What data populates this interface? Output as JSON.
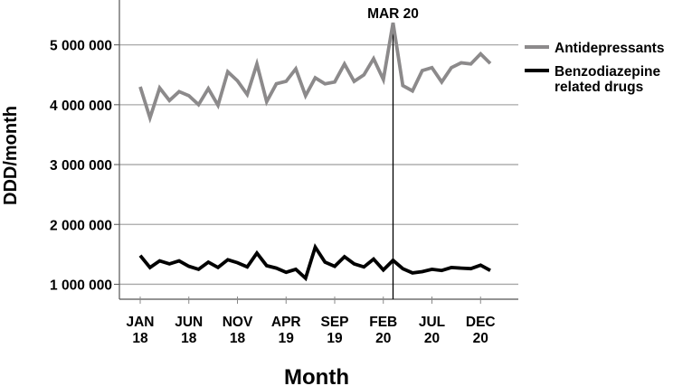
{
  "chart_data": {
    "type": "line",
    "xlabel": "Month",
    "ylabel": "DDD/month",
    "ylim": [
      750000,
      5750000
    ],
    "x_range": [
      -1,
      60
    ],
    "grid": "horizontal",
    "legend_position": "right",
    "y_ticks": [
      {
        "value": 1000000,
        "label": "1 000 000"
      },
      {
        "value": 2000000,
        "label": "2 000 000"
      },
      {
        "value": 3000000,
        "label": "3 000 000"
      },
      {
        "value": 4000000,
        "label": "4 000 000"
      },
      {
        "value": 5000000,
        "label": "5 000 000"
      }
    ],
    "x_ticks": [
      {
        "index": 0,
        "label": [
          "JAN",
          "18"
        ]
      },
      {
        "index": 5,
        "label": [
          "JUN",
          "18"
        ]
      },
      {
        "index": 10,
        "label": [
          "NOV",
          "18"
        ]
      },
      {
        "index": 15,
        "label": [
          "APR",
          "19"
        ]
      },
      {
        "index": 20,
        "label": [
          "SEP",
          "19"
        ]
      },
      {
        "index": 25,
        "label": [
          "FEB",
          "20"
        ]
      },
      {
        "index": 30,
        "label": [
          "JUL",
          "20"
        ]
      },
      {
        "index": 35,
        "label": [
          "DEC",
          "20"
        ]
      }
    ],
    "annotation": {
      "label": "MAR 20",
      "index": 26
    },
    "series": [
      {
        "name": "Antidepressants",
        "color": "#8c8a8b",
        "values": [
          4300000,
          3780000,
          4280000,
          4070000,
          4220000,
          4150000,
          4000000,
          4270000,
          3990000,
          4550000,
          4400000,
          4170000,
          4680000,
          4050000,
          4350000,
          4390000,
          4600000,
          4150000,
          4450000,
          4350000,
          4380000,
          4680000,
          4390000,
          4500000,
          4770000,
          4420000,
          5370000,
          4320000,
          4230000,
          4570000,
          4620000,
          4380000,
          4620000,
          4700000,
          4680000,
          4850000,
          4690000
        ]
      },
      {
        "name": "Benzodiazepine related drugs",
        "color": "#000000",
        "values": [
          1480000,
          1280000,
          1390000,
          1340000,
          1390000,
          1300000,
          1250000,
          1370000,
          1280000,
          1410000,
          1360000,
          1290000,
          1520000,
          1310000,
          1270000,
          1200000,
          1250000,
          1100000,
          1620000,
          1370000,
          1300000,
          1460000,
          1340000,
          1290000,
          1420000,
          1240000,
          1400000,
          1260000,
          1190000,
          1210000,
          1250000,
          1230000,
          1280000,
          1270000,
          1260000,
          1320000,
          1230000
        ]
      }
    ],
    "legend_labels": [
      {
        "lines": [
          "Antidepressants"
        ]
      },
      {
        "lines": [
          "Benzodiazepine",
          "related drugs"
        ]
      }
    ]
  }
}
